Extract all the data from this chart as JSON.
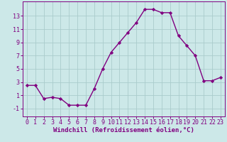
{
  "x": [
    0,
    1,
    2,
    3,
    4,
    5,
    6,
    7,
    8,
    9,
    10,
    11,
    12,
    13,
    14,
    15,
    16,
    17,
    18,
    19,
    20,
    21,
    22,
    23
  ],
  "y": [
    2.5,
    2.5,
    0.5,
    0.7,
    0.5,
    -0.5,
    -0.5,
    -0.5,
    2.0,
    5.0,
    7.5,
    9.0,
    10.5,
    12.0,
    14.0,
    14.0,
    13.5,
    13.5,
    10.0,
    8.5,
    7.0,
    3.2,
    3.2,
    3.7
  ],
  "line_color": "#800080",
  "marker": "D",
  "marker_size": 2.2,
  "bg_color": "#cce8e8",
  "grid_color": "#aacccc",
  "xlabel": "Windchill (Refroidissement éolien,°C)",
  "xlabel_fontsize": 6.5,
  "yticks": [
    -1,
    1,
    3,
    5,
    7,
    9,
    11,
    13
  ],
  "xticks": [
    0,
    1,
    2,
    3,
    4,
    5,
    6,
    7,
    8,
    9,
    10,
    11,
    12,
    13,
    14,
    15,
    16,
    17,
    18,
    19,
    20,
    21,
    22,
    23
  ],
  "ylim": [
    -2.2,
    15.2
  ],
  "xlim": [
    -0.5,
    23.5
  ],
  "tick_fontsize": 6.0,
  "line_width": 1.0
}
